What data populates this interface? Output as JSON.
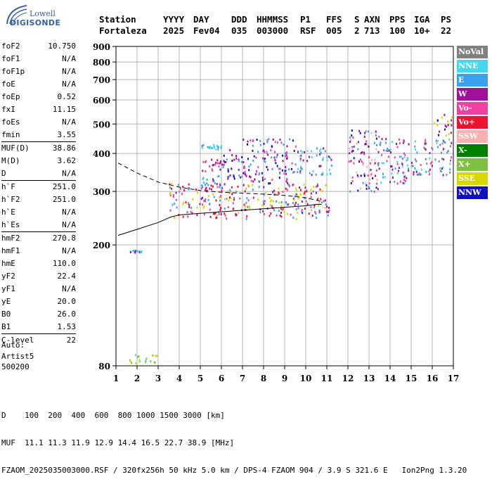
{
  "logo": {
    "line1": "Lowell",
    "line2": "DIGISONDE"
  },
  "header": {
    "labels": [
      "Station",
      "YYYY",
      "DAY",
      "DDD",
      "HHMMSS",
      "P1",
      "FFS",
      "S",
      "AXN",
      "PPS",
      "IGA",
      "PS"
    ],
    "values": [
      "Fortaleza",
      "2025",
      "Fev04",
      "035",
      "003000",
      "RSF",
      "005",
      "2",
      "713",
      "100",
      "10+",
      "22"
    ]
  },
  "params": [
    [
      {
        "n": "foF2",
        "v": "10.750"
      },
      {
        "n": "foF1",
        "v": "N/A"
      },
      {
        "n": "foF1p",
        "v": "N/A"
      },
      {
        "n": "foE",
        "v": "N/A"
      },
      {
        "n": "foEp",
        "v": "0.52"
      },
      {
        "n": "fxI",
        "v": "11.15"
      },
      {
        "n": "foEs",
        "v": "N/A"
      },
      {
        "n": "fmin",
        "v": "3.55"
      }
    ],
    [
      {
        "n": "MUF(D)",
        "v": "38.86"
      },
      {
        "n": "M(D)",
        "v": "3.62"
      },
      {
        "n": "D",
        "v": "N/A"
      }
    ],
    [
      {
        "n": "h`F",
        "v": "251.0"
      },
      {
        "n": "h`F2",
        "v": "251.0"
      },
      {
        "n": "h`E",
        "v": "N/A"
      },
      {
        "n": "h`Es",
        "v": "N/A"
      }
    ],
    [
      {
        "n": "hmF2",
        "v": "270.8"
      },
      {
        "n": "hmF1",
        "v": "N/A"
      },
      {
        "n": "hmE",
        "v": "110.0"
      },
      {
        "n": "yF2",
        "v": "22.4"
      },
      {
        "n": "yF1",
        "v": "N/A"
      },
      {
        "n": "yE",
        "v": "20.0"
      },
      {
        "n": "B0",
        "v": "26.0"
      },
      {
        "n": "B1",
        "v": "1.53"
      }
    ],
    [
      {
        "n": "C-level",
        "v": "22"
      }
    ]
  ],
  "auto": {
    "line1": "Auto:",
    "line2": "Artist5",
    "line3": "500200"
  },
  "legend": [
    {
      "label": "NoVal",
      "color": "#808080"
    },
    {
      "label": "NNE",
      "color": "#44d8f0"
    },
    {
      "label": "E",
      "color": "#3aa0f0"
    },
    {
      "label": "W",
      "color": "#a0109a"
    },
    {
      "label": "Vo-",
      "color": "#f040a0"
    },
    {
      "label": "Vo+",
      "color": "#f01030"
    },
    {
      "label": "SSW",
      "color": "#f8b0b0"
    },
    {
      "label": "X-",
      "color": "#008000"
    },
    {
      "label": "X+",
      "color": "#80c040"
    },
    {
      "label": "SSE",
      "color": "#d8d800"
    },
    {
      "label": "NNW",
      "color": "#1010c0"
    }
  ],
  "bottom": {
    "line1": "D    100  200  400  600  800 1000 1500 3000 [km]",
    "line2": "MUF  11.1 11.3 11.9 12.9 14.4 16.5 22.7 38.9 [MHz]",
    "line3": "FZAOM_2025035003000.RSF / 320fx256h 50 kHz 5.0 km / DPS-4 FZAOM 904 / 3.9 S 321.6 E   Ion2Png 1.3.20"
  },
  "chart_data": {
    "type": "scatter",
    "title": "",
    "xlabel": "",
    "ylabel": "",
    "xlim": [
      1,
      17
    ],
    "ylim": [
      80,
      900
    ],
    "xticks": [
      1,
      2,
      3,
      4,
      5,
      6,
      7,
      8,
      9,
      10,
      11,
      12,
      13,
      14,
      15,
      16,
      17
    ],
    "yticks": [
      80,
      200,
      300,
      400,
      500,
      600,
      700,
      800,
      900
    ],
    "yscale": "log",
    "grid": true,
    "traces": [
      {
        "name": "",
        "style": "dashed",
        "x": [
          1.1,
          2.0,
          3.0,
          4.0,
          5.0,
          6.0,
          7.0,
          8.0,
          9.0,
          10.0,
          10.75
        ],
        "y": [
          372,
          345,
          322,
          310,
          302,
          298,
          296,
          294,
          291,
          286,
          278
        ]
      },
      {
        "name": "",
        "style": "solid",
        "x": [
          1.1,
          2.0,
          3.0,
          3.6,
          4.0,
          5.0,
          6.0,
          7.0,
          8.0,
          9.0,
          10.0,
          10.5,
          10.75
        ],
        "y": [
          215,
          225,
          237,
          247,
          251,
          254,
          257,
          260,
          263,
          266,
          269,
          272,
          272
        ]
      }
    ],
    "echo_clusters": [
      {
        "x": [
          3.5,
          11.1
        ],
        "y": [
          245,
          320
        ],
        "colors": [
          "Vo+",
          "Vo-",
          "SSE",
          "W",
          "E"
        ]
      },
      {
        "x": [
          5.0,
          6.0
        ],
        "y": [
          310,
          340
        ],
        "colors": [
          "E",
          "NNE",
          "W"
        ]
      },
      {
        "x": [
          5.0,
          6.0
        ],
        "y": [
          415,
          430
        ],
        "colors": [
          "E",
          "NNE"
        ]
      },
      {
        "x": [
          5.0,
          6.0
        ],
        "y": [
          350,
          395
        ],
        "colors": [
          "W",
          "Vo-"
        ]
      },
      {
        "x": [
          6.0,
          7.0
        ],
        "y": [
          330,
          420
        ],
        "colors": [
          "W",
          "E",
          "NNW"
        ]
      },
      {
        "x": [
          7.0,
          9.5
        ],
        "y": [
          320,
          450
        ],
        "colors": [
          "W",
          "NNW",
          "E",
          "Vo-"
        ]
      },
      {
        "x": [
          9.5,
          11.2
        ],
        "y": [
          340,
          420
        ],
        "colors": [
          "NNE",
          "E",
          "W"
        ]
      },
      {
        "x": [
          12.0,
          13.5
        ],
        "y": [
          300,
          480
        ],
        "colors": [
          "W",
          "Vo-",
          "SSW",
          "E",
          "NNW"
        ]
      },
      {
        "x": [
          13.5,
          15.0
        ],
        "y": [
          320,
          450
        ],
        "colors": [
          "W",
          "E",
          "Vo-",
          "NNE"
        ]
      },
      {
        "x": [
          15.0,
          16.9
        ],
        "y": [
          340,
          450
        ],
        "colors": [
          "W",
          "Vo-",
          "E",
          "NNE",
          "NoVal"
        ]
      },
      {
        "x": [
          16.0,
          16.9
        ],
        "y": [
          460,
          540
        ],
        "colors": [
          "NNW",
          "SSE",
          "W"
        ]
      },
      {
        "x": [
          1.5,
          3.0
        ],
        "y": [
          82,
          88
        ],
        "colors": [
          "X+",
          "SSE",
          "NNE"
        ]
      },
      {
        "x": [
          1.6,
          2.2
        ],
        "y": [
          190,
          194
        ],
        "colors": [
          "NNE",
          "W"
        ]
      }
    ]
  }
}
